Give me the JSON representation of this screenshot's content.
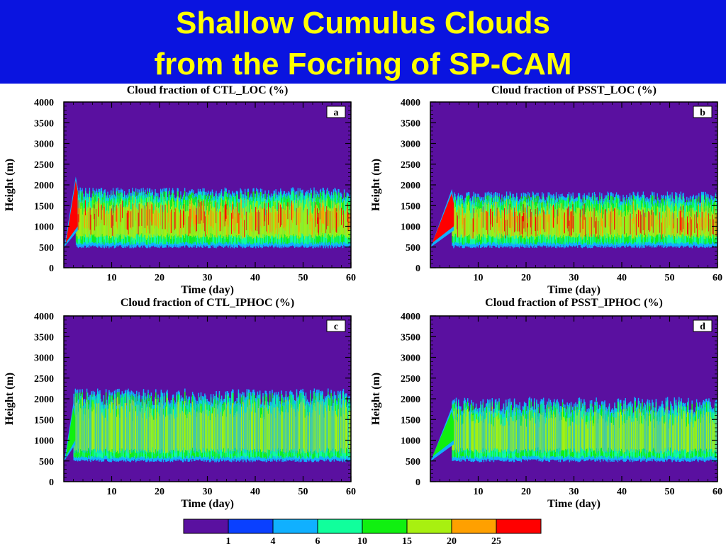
{
  "slide": {
    "title_line1": "Shallow Cumulus Clouds",
    "title_line2": "from the Focring of SP-CAM",
    "title_bg_color": "#0a14e0",
    "title_text_color": "#ffff00"
  },
  "chart_data": [
    {
      "type": "heatmap",
      "title": "Cloud fraction of CTL_LOC (%)",
      "panel_label": "a",
      "xlabel": "Time (day)",
      "ylabel": "Height (m)",
      "xlim": [
        0,
        60
      ],
      "ylim": [
        0,
        4000
      ],
      "xticks": [
        10,
        20,
        30,
        40,
        50,
        60
      ],
      "yticks": [
        0,
        500,
        1000,
        1500,
        2000,
        2500,
        3000,
        3500,
        4000
      ],
      "layer_summary": {
        "spinup_peak_day": 2.5,
        "spinup_peak_height_m": 2200,
        "cloud_base_m": 550,
        "cloud_top_m": 1750,
        "core_fraction_pct": 20
      }
    },
    {
      "type": "heatmap",
      "title": "Cloud fraction of PSST_LOC (%)",
      "panel_label": "b",
      "xlabel": "Time (day)",
      "ylabel": "Height (m)",
      "xlim": [
        0,
        60
      ],
      "ylim": [
        0,
        4000
      ],
      "xticks": [
        10,
        20,
        30,
        40,
        50,
        60
      ],
      "yticks": [
        0,
        500,
        1000,
        1500,
        2000,
        2500,
        3000,
        3500,
        4000
      ],
      "layer_summary": {
        "spinup_peak_day": 4.5,
        "spinup_peak_height_m": 1900,
        "cloud_base_m": 550,
        "cloud_top_m": 1650,
        "core_fraction_pct": 20
      }
    },
    {
      "type": "heatmap",
      "title": "Cloud fraction of CTL_IPHOC (%)",
      "panel_label": "c",
      "xlabel": "Time (day)",
      "ylabel": "Height (m)",
      "xlim": [
        0,
        60
      ],
      "ylim": [
        0,
        4000
      ],
      "xticks": [
        10,
        20,
        30,
        40,
        50,
        60
      ],
      "yticks": [
        0,
        500,
        1000,
        1500,
        2000,
        2500,
        3000,
        3500,
        4000
      ],
      "layer_summary": {
        "spinup_peak_day": 2.0,
        "spinup_peak_height_m": 1900,
        "cloud_base_m": 550,
        "cloud_top_m": 2000,
        "core_fraction_pct": 15
      }
    },
    {
      "type": "heatmap",
      "title": "Cloud fraction of PSST_IPHOC (%)",
      "panel_label": "d",
      "xlabel": "Time (day)",
      "ylabel": "Height (m)",
      "xlim": [
        0,
        60
      ],
      "ylim": [
        0,
        4000
      ],
      "xticks": [
        10,
        20,
        30,
        40,
        50,
        60
      ],
      "yticks": [
        0,
        500,
        1000,
        1500,
        2000,
        2500,
        3000,
        3500,
        4000
      ],
      "layer_summary": {
        "spinup_peak_day": 4.5,
        "spinup_peak_height_m": 1800,
        "cloud_base_m": 550,
        "cloud_top_m": 1800,
        "core_fraction_pct": 15
      }
    }
  ],
  "colorbar": {
    "colors": [
      "#5a10a0",
      "#0a40ff",
      "#10b0ff",
      "#10ff9c",
      "#10f010",
      "#a8f010",
      "#ffa000",
      "#ff0000"
    ],
    "labels": [
      "1",
      "4",
      "6",
      "10",
      "15",
      "20",
      "25"
    ]
  }
}
